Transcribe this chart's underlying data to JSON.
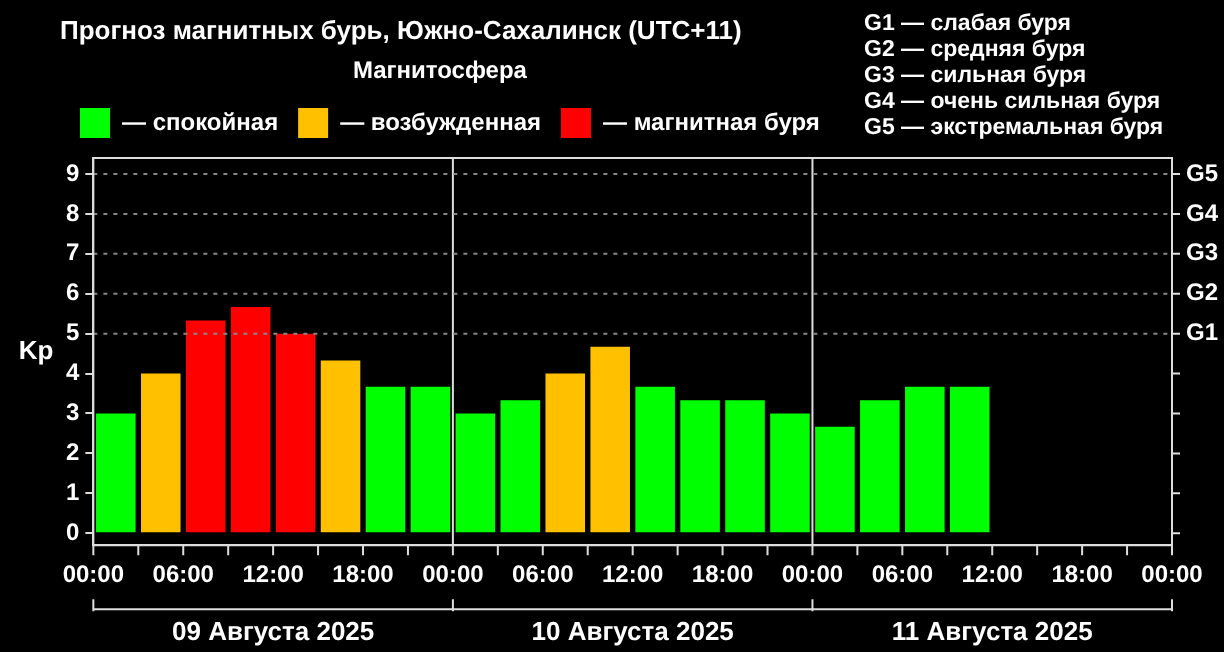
{
  "chart_data": {
    "type": "bar",
    "title": "Прогноз магнитных бурь, Южно-Сахалинск (UTC+11)",
    "ylabel": "Kp",
    "legend_title": "Магнитосфера",
    "legend": "top left",
    "series": [
      {
        "name": "— спокойная",
        "color": "#00ff00",
        "x": [
          "2025-08-09T01:30",
          "2025-08-09T19:30",
          "2025-08-09T22:30",
          "2025-08-10T01:30",
          "2025-08-10T04:30",
          "2025-08-10T13:30",
          "2025-08-10T16:30",
          "2025-08-10T19:30",
          "2025-08-10T22:30",
          "2025-08-11T01:30",
          "2025-08-11T04:30",
          "2025-08-11T07:30",
          "2025-08-11T10:30"
        ],
        "values": [
          3,
          3.67,
          3.67,
          3,
          3.33,
          3.67,
          3.33,
          3.33,
          3,
          2.67,
          3.33,
          3.67,
          3.67
        ]
      },
      {
        "name": "— возбужденная",
        "color": "#ffc000",
        "x": [
          "2025-08-09T04:30",
          "2025-08-09T16:30",
          "2025-08-10T07:30",
          "2025-08-10T10:30"
        ],
        "values": [
          4,
          4.33,
          4,
          4.67
        ]
      },
      {
        "name": "— магнитная буря",
        "color": "#ff0000",
        "x": [
          "2025-08-09T07:30",
          "2025-08-09T10:30",
          "2025-08-09T13:30"
        ],
        "values": [
          5.33,
          5.67,
          5
        ]
      }
    ],
    "xlim": [
      "2025-08-09T00:00",
      "2025-08-12T00:00"
    ],
    "xticks": [
      {
        "value": "2025-08-09T00:00",
        "label": "00:00"
      },
      {
        "value": "2025-08-09T03:00",
        "label": null
      },
      {
        "value": "2025-08-09T06:00",
        "label": "06:00"
      },
      {
        "value": "2025-08-09T09:00",
        "label": null
      },
      {
        "value": "2025-08-09T12:00",
        "label": "12:00"
      },
      {
        "value": "2025-08-09T15:00",
        "label": null
      },
      {
        "value": "2025-08-09T18:00",
        "label": "18:00"
      },
      {
        "value": "2025-08-09T21:00",
        "label": null
      },
      {
        "value": "2025-08-10T00:00",
        "label": "00:00"
      },
      {
        "value": "2025-08-10T03:00",
        "label": null
      },
      {
        "value": "2025-08-10T06:00",
        "label": "06:00"
      },
      {
        "value": "2025-08-10T09:00",
        "label": null
      },
      {
        "value": "2025-08-10T12:00",
        "label": "12:00"
      },
      {
        "value": "2025-08-10T15:00",
        "label": null
      },
      {
        "value": "2025-08-10T18:00",
        "label": "18:00"
      },
      {
        "value": "2025-08-10T21:00",
        "label": null
      },
      {
        "value": "2025-08-11T00:00",
        "label": "00:00"
      },
      {
        "value": "2025-08-11T03:00",
        "label": null
      },
      {
        "value": "2025-08-11T06:00",
        "label": "06:00"
      },
      {
        "value": "2025-08-11T09:00",
        "label": null
      },
      {
        "value": "2025-08-11T12:00",
        "label": "12:00"
      },
      {
        "value": "2025-08-11T15:00",
        "label": null
      },
      {
        "value": "2025-08-11T18:00",
        "label": "18:00"
      },
      {
        "value": "2025-08-11T21:00",
        "label": null
      },
      {
        "value": "2025-08-12T00:00",
        "label": "00:00"
      }
    ],
    "ylim": [
      -0.3,
      9.4
    ],
    "yticks": [
      0,
      1,
      2,
      3,
      4,
      5,
      6,
      7,
      8,
      9
    ],
    "ref_lines": [
      {
        "axis": "x",
        "value": "2025-08-10T00:00",
        "color": "#dddddd"
      },
      {
        "axis": "x",
        "value": "2025-08-11T00:00",
        "color": "#dddddd"
      },
      {
        "axis": "y",
        "value": 5,
        "label": "G1",
        "color": "#888888",
        "line_style": "dotted"
      },
      {
        "axis": "y",
        "value": 6,
        "label": "G2",
        "color": "#888888",
        "line_style": "dotted"
      },
      {
        "axis": "y",
        "value": 7,
        "label": "G3",
        "color": "#888888",
        "line_style": "dotted"
      },
      {
        "axis": "y",
        "value": 8,
        "label": "G4",
        "color": "#888888",
        "line_style": "dotted"
      },
      {
        "axis": "y",
        "value": 9,
        "label": "G5",
        "color": "#888888",
        "line_style": "dotted"
      }
    ],
    "annotations": [
      "G1 — слабая буря",
      "G2 — средняя буря",
      "G3 — сильная буря",
      "G4 — очень сильная буря",
      "G5 — экстремальная буря",
      "09 Августа 2025",
      "10 Августа 2025",
      "11 Августа 2025"
    ]
  }
}
